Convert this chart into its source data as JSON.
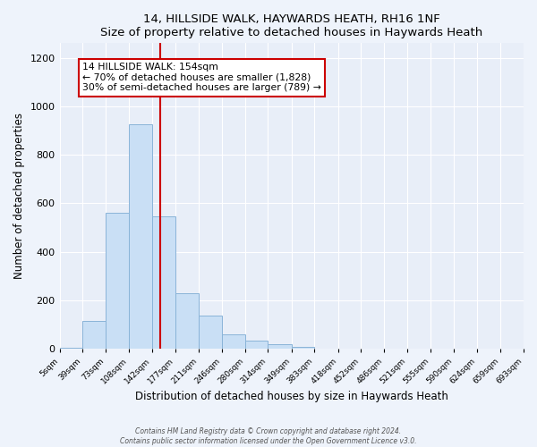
{
  "title1": "14, HILLSIDE WALK, HAYWARDS HEATH, RH16 1NF",
  "title2": "Size of property relative to detached houses in Haywards Heath",
  "xlabel": "Distribution of detached houses by size in Haywards Heath",
  "ylabel": "Number of detached properties",
  "bar_color": "#c9dff5",
  "bar_edge_color": "#8ab4d8",
  "bin_edges": [
    5,
    39,
    73,
    108,
    142,
    177,
    211,
    246,
    280,
    314,
    349,
    383,
    418,
    452,
    486,
    521,
    555,
    590,
    624,
    659,
    693
  ],
  "bar_heights": [
    5,
    115,
    560,
    925,
    548,
    230,
    138,
    60,
    35,
    20,
    8,
    0,
    0,
    0,
    0,
    0,
    0,
    0,
    0,
    0
  ],
  "property_size": 154,
  "vline_color": "#cc0000",
  "annotation_line1": "14 HILLSIDE WALK: 154sqm",
  "annotation_line2": "← 70% of detached houses are smaller (1,828)",
  "annotation_line3": "30% of semi-detached houses are larger (789) →",
  "annotation_box_edgecolor": "#cc0000",
  "ylim": [
    0,
    1260
  ],
  "yticks": [
    0,
    200,
    400,
    600,
    800,
    1000,
    1200
  ],
  "xlim_left": 5,
  "xlim_right": 693,
  "fig_bg_color": "#eef3fb",
  "ax_bg_color": "#e8eef8",
  "grid_color": "#ffffff",
  "footer1": "Contains HM Land Registry data © Crown copyright and database right 2024.",
  "footer2": "Contains public sector information licensed under the Open Government Licence v3.0."
}
